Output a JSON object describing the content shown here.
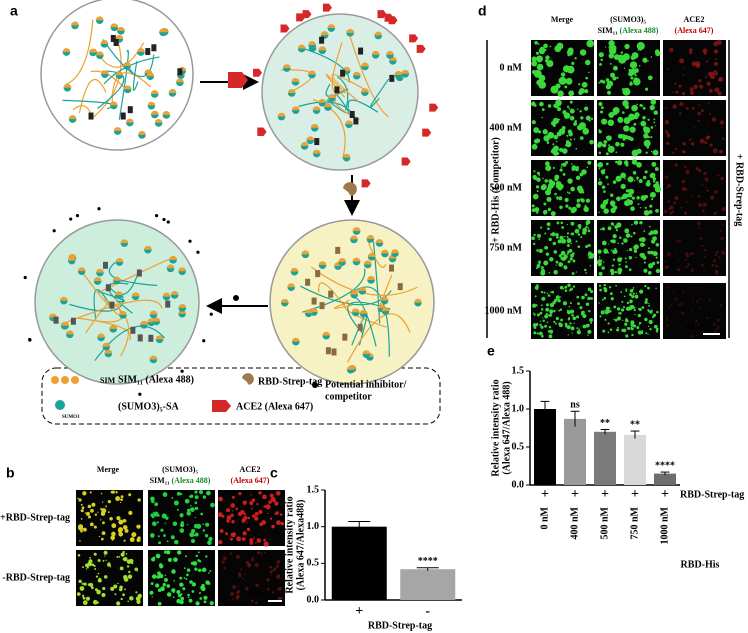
{
  "panel_labels": [
    "a",
    "b",
    "c",
    "d",
    "e"
  ],
  "panel_a": {
    "legend": [
      "SIM₁₁ (Alexa 488)",
      "RBD-Strep-tag",
      "Potential inhibitor/",
      "competitor",
      "(SUMO3)₅-SA",
      "ACE2 (Alexa 647)"
    ],
    "icon_labels": [
      "SIM",
      "SUMO3"
    ]
  },
  "panel_b": {
    "columns": [
      [
        "Merge"
      ],
      [
        "(SUMO3)₅",
        "SIM₁₁ ",
        "(Alexa 488)"
      ],
      [
        "ACE2",
        "(Alexa 647)"
      ]
    ],
    "rows": [
      "+RBD-Strep-tag",
      "-RBD-Strep-tag"
    ],
    "scale_bar": "10 μm"
  },
  "panel_d": {
    "columns": [
      [
        "Merge"
      ],
      [
        "(SUMO3)₅",
        "SIM₁₁ ",
        "(Alexa 488)"
      ],
      [
        "ACE2",
        "(Alexa 647)"
      ]
    ],
    "rows": [
      "0 nM",
      "400 nM",
      "500 nM",
      "750 nM",
      "1000 nM"
    ],
    "left_label": "+ RBD-His (Competitor)",
    "right_label": "+ RBD-Strep-tag",
    "scale_bar": "10 μm"
  },
  "chart_data": [
    {
      "type": "bar",
      "ylabel": [
        "Relative intensity ratio",
        "(Alexa 647/Alexa488)"
      ],
      "xlabel": "RBD-Strep-tag",
      "categories": [
        "+",
        "-"
      ],
      "values": [
        1.0,
        0.42
      ],
      "errors": [
        0.07,
        0.02
      ],
      "annotations": [
        null,
        "****"
      ],
      "colors": [
        "#000000",
        "#a6a6a6"
      ],
      "ylim": [
        0,
        1.5
      ],
      "yticks": [
        {
          "value": 0,
          "label": "0.0"
        },
        0.5,
        {
          "value": 1,
          "label": "1.0"
        },
        1.5
      ]
    },
    {
      "type": "bar",
      "ylabel": [
        "Relative intensity ratio",
        "(Alexa 647/Alexa 488)"
      ],
      "xlabel": "RBD-His",
      "categories": [
        "0 nM",
        "400 nM",
        "500 nM",
        "750 nM",
        "1000 nM"
      ],
      "values": [
        1.0,
        0.87,
        0.7,
        0.66,
        0.15
      ],
      "errors": [
        0.1,
        0.1,
        0.03,
        0.05,
        0.02
      ],
      "annotations": [
        null,
        "ns",
        "**",
        "**",
        "****"
      ],
      "colors": [
        "#000000",
        "#9a9a9a",
        "#7a7a7a",
        "#d9d9d9",
        "#6e6e6e"
      ],
      "row_label": "RBD-Strep-tag",
      "row_marks": [
        "+",
        "+",
        "+",
        "+",
        "+"
      ],
      "ylim": [
        0,
        1.5
      ],
      "yticks": [
        {
          "value": 0,
          "label": "0.0"
        },
        0.5,
        {
          "value": 1,
          "label": "1.0"
        },
        1.5
      ]
    }
  ]
}
